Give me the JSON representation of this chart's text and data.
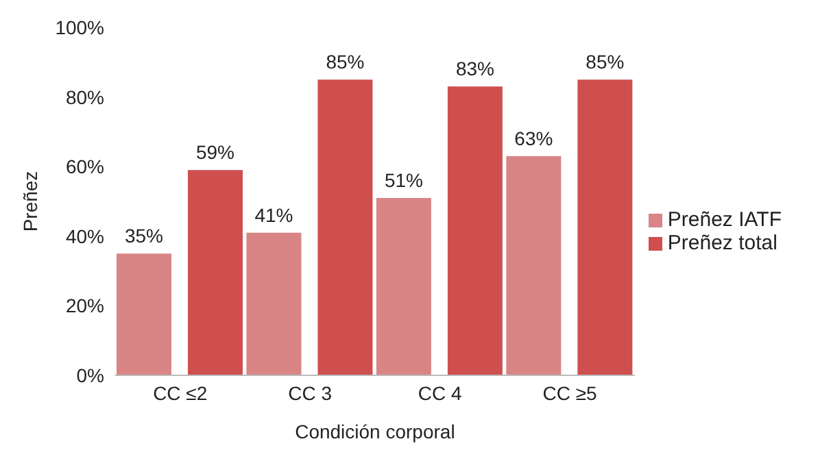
{
  "chart_data": {
    "type": "bar",
    "xlabel": "Condición corporal",
    "ylabel": "Preñez",
    "categories": [
      "CC ≤2",
      "CC 3",
      "CC 4",
      "CC ≥5"
    ],
    "series": [
      {
        "name": "Preñez IATF",
        "color": "#d98585",
        "values": [
          35,
          41,
          51,
          63
        ],
        "value_labels": [
          "35%",
          "41%",
          "51%",
          "63%"
        ]
      },
      {
        "name": "Preñez total",
        "color": "#cf4f4f",
        "values": [
          59,
          85,
          83,
          85
        ],
        "value_labels": [
          "59%",
          "85%",
          "83%",
          "85%"
        ]
      }
    ],
    "ylim": [
      0,
      100
    ],
    "yticks": [
      {
        "value": 0,
        "label": "0%"
      },
      {
        "value": 20,
        "label": "20%"
      },
      {
        "value": 40,
        "label": "40%"
      },
      {
        "value": 60,
        "label": "60%"
      },
      {
        "value": 80,
        "label": "80%"
      },
      {
        "value": 100,
        "label": "100%"
      }
    ],
    "grid": false,
    "legend": "right"
  }
}
